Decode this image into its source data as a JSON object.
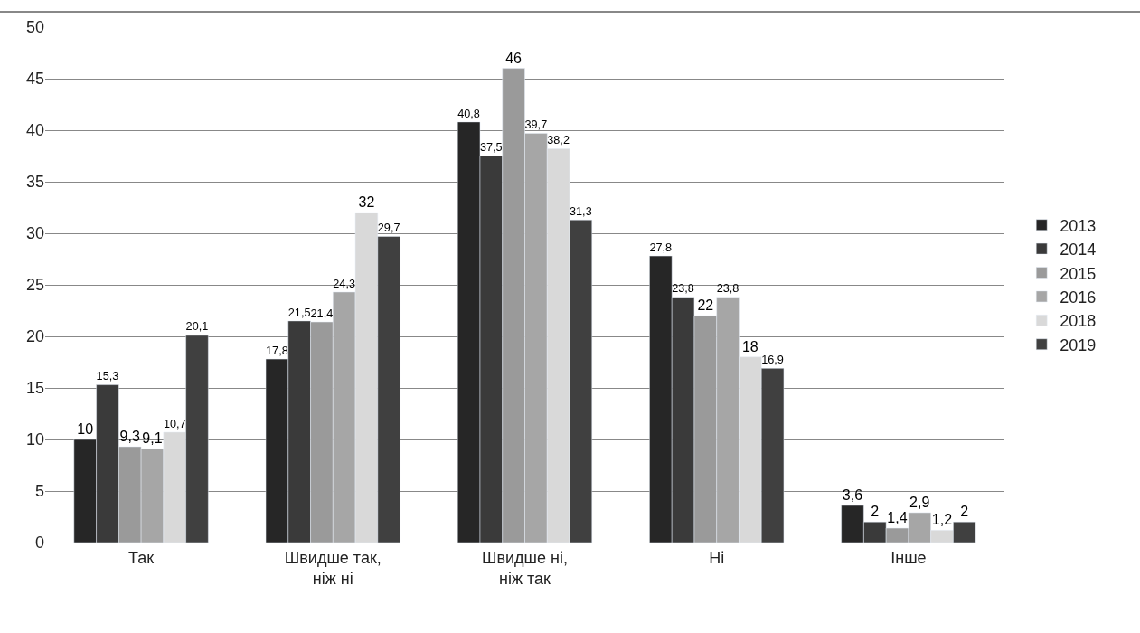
{
  "chart_data": {
    "type": "bar",
    "categories": [
      "Так",
      "Швидше так, ніж ні",
      "Швидше ні, ніж так",
      "Ні",
      "Інше"
    ],
    "series": [
      {
        "name": "2013",
        "color": "#262626",
        "values": [
          10,
          17.8,
          40.8,
          27.8,
          3.6
        ],
        "value_labels": [
          "10",
          "17,8",
          "40,8",
          "27,8",
          "3,6"
        ]
      },
      {
        "name": "2014",
        "color": "#3a3a3a",
        "values": [
          15.3,
          21.5,
          37.5,
          23.8,
          2
        ],
        "value_labels": [
          "15,3",
          "21,5",
          "37,5",
          "23,8",
          "2"
        ]
      },
      {
        "name": "2015",
        "color": "#9a9a9a",
        "values": [
          9.3,
          21.4,
          46,
          22,
          1.4
        ],
        "value_labels": [
          "9,3",
          "21,4",
          "46",
          "22",
          "1,4"
        ]
      },
      {
        "name": "2016",
        "color": "#a6a6a6",
        "values": [
          9.1,
          24.3,
          39.7,
          23.8,
          2.9
        ],
        "value_labels": [
          "9,1",
          "24,3",
          "39,7",
          "23,8",
          "2,9"
        ]
      },
      {
        "name": "2018",
        "color": "#d9d9d9",
        "values": [
          10.7,
          32,
          38.2,
          18,
          1.2
        ],
        "value_labels": [
          "10,7",
          "32",
          "38,2",
          "18",
          "1,2"
        ]
      },
      {
        "name": "2019",
        "color": "#404040",
        "values": [
          20.1,
          29.7,
          31.3,
          16.9,
          2
        ],
        "value_labels": [
          "20,1",
          "29,7",
          "31,3",
          "16,9",
          "2"
        ]
      }
    ],
    "ylim": [
      0,
      50
    ],
    "yticks": [
      0,
      5,
      10,
      15,
      20,
      25,
      30,
      35,
      40,
      45,
      50
    ],
    "grid": "y",
    "legend": "right"
  }
}
